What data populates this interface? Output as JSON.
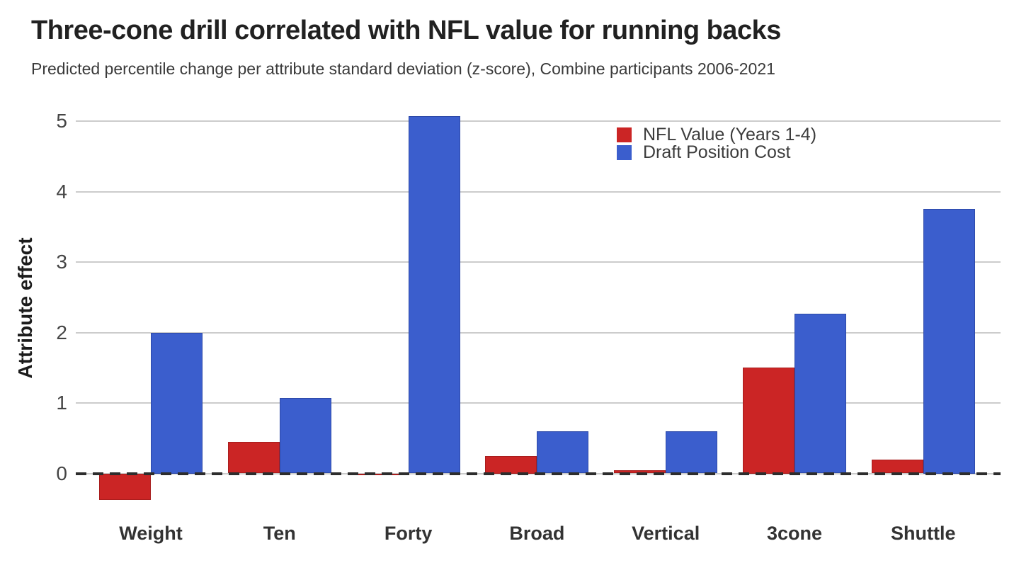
{
  "header": {
    "title": "Three-cone drill correlated with NFL value for running backs",
    "subtitle": "Predicted percentile change per attribute standard deviation (z-score), Combine participants 2006-2021"
  },
  "colors": {
    "nfl_value_red": "#cb2525",
    "draft_cost_blue": "#3b5ecd",
    "gridline": "#cccccc",
    "zero_dash": "#2d2d2d",
    "title_text": "#212121",
    "subtitle_text": "#3a3a3a",
    "axis_tick_text": "#454545",
    "category_text": "#333333"
  },
  "chart_data": {
    "type": "bar",
    "title": "Three-cone drill correlated with NFL value for running backs",
    "subtitle": "Predicted percentile change per attribute standard deviation (z-score), Combine participants 2006-2021",
    "categories": [
      "Weight",
      "Ten",
      "Forty",
      "Broad",
      "Vertical",
      "3cone",
      "Shuttle"
    ],
    "series": [
      {
        "name": "NFL Value (Years 1-4)",
        "color": "#cb2525",
        "values": [
          -0.38,
          0.45,
          -0.03,
          0.25,
          0.05,
          1.5,
          0.2
        ]
      },
      {
        "name": "Draft Position Cost",
        "color": "#3b5ecd",
        "values": [
          2.0,
          1.07,
          5.07,
          0.6,
          0.6,
          2.27,
          3.75
        ]
      }
    ],
    "xlabel": "",
    "ylabel": "Attribute effect",
    "yticks": [
      0,
      1,
      2,
      3,
      4,
      5
    ],
    "ylim": [
      -0.55,
      5.2
    ],
    "grid": true,
    "zero_line": "dashed",
    "legend_position": "top-right-inside"
  },
  "legend": {
    "items": [
      {
        "label": "NFL Value (Years 1-4)",
        "color": "#cb2525"
      },
      {
        "label": "Draft Position Cost",
        "color": "#3b5ecd"
      }
    ]
  }
}
